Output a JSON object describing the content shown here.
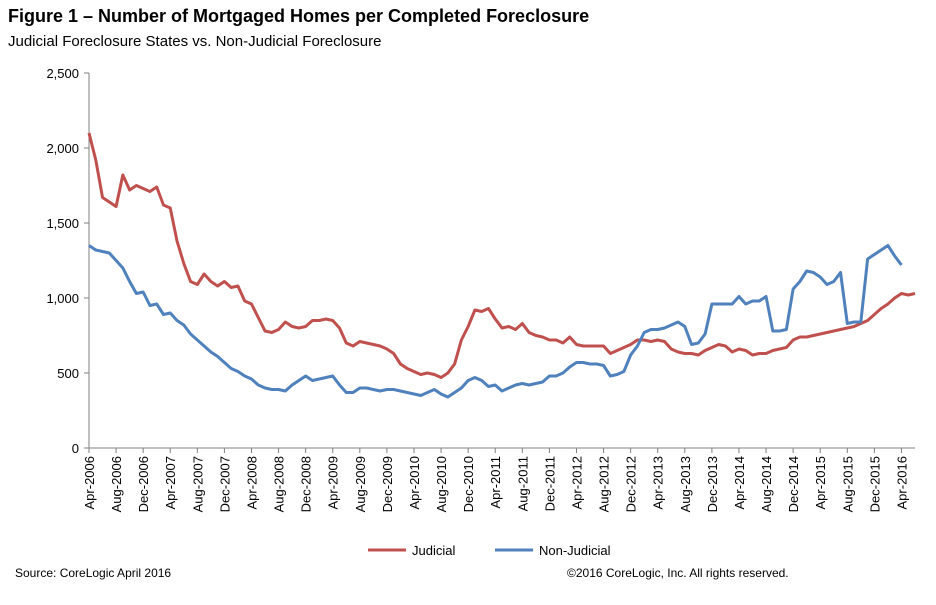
{
  "title": "Figure 1 – Number of Mortgaged Homes per Completed Foreclosure",
  "subtitle": "Judicial Foreclosure States vs. Non-Judicial Foreclosure",
  "source": "Source: CoreLogic  April 2016",
  "copyright": "©2016 CoreLogic, Inc. All rights reserved.",
  "chart_data": {
    "type": "line",
    "ylim": [
      0,
      2500
    ],
    "yticks": [
      0,
      500,
      1000,
      1500,
      2000,
      2500
    ],
    "ytick_labels": [
      "0",
      "500",
      "1,000",
      "1,500",
      "2,000",
      "2,500"
    ],
    "xtick_labels": [
      "Apr-2006",
      "Aug-2006",
      "Dec-2006",
      "Apr-2007",
      "Aug-2007",
      "Dec-2007",
      "Apr-2008",
      "Aug-2008",
      "Dec-2008",
      "Apr-2009",
      "Aug-2009",
      "Dec-2009",
      "Apr-2010",
      "Aug-2010",
      "Dec-2010",
      "Apr-2011",
      "Aug-2011",
      "Dec-2011",
      "Apr-2012",
      "Aug-2012",
      "Dec-2012",
      "Apr-2013",
      "Aug-2013",
      "Dec-2013",
      "Apr-2014",
      "Aug-2014",
      "Dec-2014",
      "Apr-2015",
      "Aug-2015",
      "Dec-2015",
      "Apr-2016"
    ],
    "x_start": "Apr-2006",
    "x_end": "Apr-2016",
    "grid": false,
    "legend_position": "bottom",
    "series": [
      {
        "name": "Judicial",
        "color": "#c0504d",
        "values": [
          2100,
          1920,
          1670,
          1640,
          1610,
          1820,
          1720,
          1750,
          1730,
          1710,
          1740,
          1620,
          1600,
          1380,
          1230,
          1110,
          1090,
          1160,
          1110,
          1080,
          1110,
          1070,
          1080,
          980,
          960,
          870,
          780,
          770,
          790,
          840,
          810,
          800,
          810,
          850,
          850,
          860,
          850,
          800,
          700,
          680,
          710,
          700,
          690,
          680,
          660,
          630,
          560,
          530,
          510,
          490,
          500,
          490,
          470,
          500,
          560,
          720,
          810,
          920,
          910,
          930,
          860,
          800,
          810,
          790,
          830,
          770,
          750,
          740,
          720,
          720,
          700,
          740,
          690,
          680,
          680,
          680,
          680,
          630,
          650,
          670,
          690,
          720,
          720,
          710,
          720,
          710,
          660,
          640,
          630,
          630,
          620,
          650,
          670,
          690,
          680,
          640,
          660,
          650,
          620,
          630,
          630,
          650,
          660,
          670,
          720,
          740,
          740,
          750,
          760,
          770,
          780,
          790,
          800,
          810,
          830,
          850,
          890,
          930,
          960,
          1000,
          1030,
          1020,
          1030
        ]
      },
      {
        "name": "Non-Judicial",
        "color": "#4f81bd",
        "values": [
          1350,
          1320,
          1310,
          1300,
          1250,
          1200,
          1110,
          1030,
          1040,
          950,
          960,
          890,
          900,
          850,
          820,
          760,
          720,
          680,
          640,
          610,
          570,
          530,
          510,
          480,
          460,
          420,
          400,
          390,
          390,
          380,
          420,
          450,
          480,
          450,
          460,
          470,
          480,
          420,
          370,
          370,
          400,
          400,
          390,
          380,
          390,
          390,
          380,
          370,
          360,
          350,
          370,
          390,
          360,
          340,
          370,
          400,
          450,
          470,
          450,
          410,
          420,
          380,
          400,
          420,
          430,
          420,
          430,
          440,
          480,
          480,
          500,
          540,
          570,
          570,
          560,
          560,
          550,
          480,
          490,
          510,
          620,
          680,
          770,
          790,
          790,
          800,
          820,
          840,
          810,
          690,
          700,
          760,
          960,
          960,
          960,
          960,
          1010,
          960,
          980,
          980,
          1010,
          780,
          780,
          790,
          1060,
          1110,
          1180,
          1170,
          1140,
          1090,
          1110,
          1170,
          830,
          840,
          840,
          1260,
          1290,
          1320,
          1350,
          1280,
          1220
        ]
      }
    ]
  }
}
